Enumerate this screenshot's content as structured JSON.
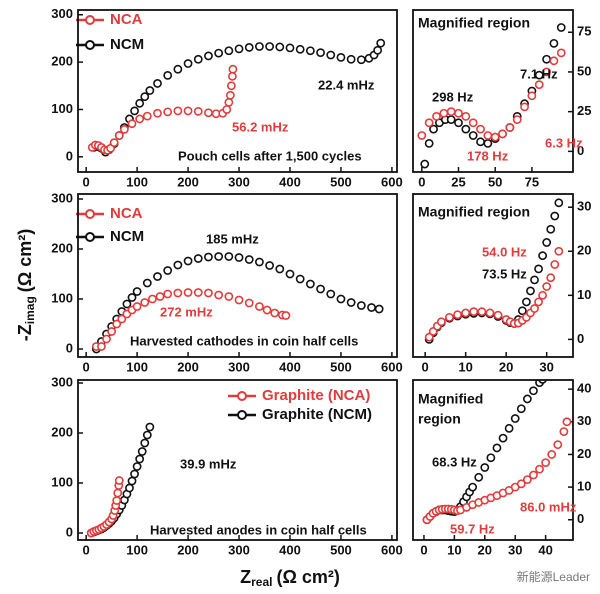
{
  "chart_data": [
    {
      "type": "scatter",
      "y_axis_side": "left",
      "xlim": [
        -16,
        610
      ],
      "ylim": [
        -32,
        310
      ],
      "xticks": [
        0,
        100,
        200,
        300,
        400,
        500,
        600
      ],
      "yticks": [
        0,
        100,
        200,
        300
      ],
      "series": [
        {
          "name": "NCM",
          "color": "#111111",
          "x": [
            15,
            22,
            30,
            38,
            45,
            55,
            65,
            75,
            85,
            95,
            105,
            115,
            125,
            140,
            160,
            180,
            200,
            220,
            240,
            260,
            280,
            300,
            320,
            340,
            360,
            380,
            400,
            420,
            440,
            460,
            480,
            500,
            520,
            540,
            555,
            565,
            572,
            578
          ],
          "values": [
            20,
            22,
            18,
            10,
            15,
            28,
            45,
            62,
            80,
            97,
            113,
            127,
            140,
            155,
            172,
            185,
            197,
            206,
            213,
            219,
            224,
            228,
            231,
            233,
            233,
            232,
            230,
            227,
            224,
            220,
            215,
            210,
            206,
            205,
            208,
            215,
            225,
            240
          ]
        },
        {
          "name": "NCA",
          "color": "#e03c3c",
          "x": [
            12,
            18,
            24,
            30,
            36,
            42,
            48,
            55,
            65,
            75,
            90,
            105,
            120,
            140,
            160,
            180,
            200,
            220,
            240,
            255,
            268,
            276,
            280,
            283,
            285,
            287,
            288
          ],
          "values": [
            20,
            25,
            24,
            20,
            15,
            14,
            18,
            30,
            45,
            58,
            70,
            80,
            86,
            92,
            95,
            97,
            97,
            96,
            93,
            91,
            92,
            100,
            115,
            130,
            150,
            170,
            185
          ]
        }
      ],
      "annotations": [
        {
          "text": "22.4 mHz",
          "color": "#111111"
        },
        {
          "text": "56.2 mHz",
          "color": "#e03c3c"
        },
        {
          "text": "Pouch cells after 1,500 cycles",
          "color": "#111111"
        }
      ]
    },
    {
      "type": "scatter",
      "y_axis_side": "right",
      "title": [
        "Magnified region"
      ],
      "xlim": [
        -6,
        103
      ],
      "ylim": [
        -13,
        89
      ],
      "xticks": [
        0,
        25,
        50,
        75
      ],
      "yticks": [
        0,
        25,
        50,
        75
      ],
      "series": [
        {
          "color": "#111111",
          "x": [
            2,
            5,
            8,
            12,
            16,
            20,
            25,
            30,
            35,
            40,
            45,
            50,
            55,
            60,
            65,
            70,
            75,
            80,
            85,
            90,
            95
          ],
          "values": [
            -8,
            5,
            14,
            18,
            20,
            20,
            18,
            14,
            10,
            6,
            5,
            8,
            11,
            15,
            22,
            30,
            38,
            48,
            58,
            68,
            78
          ]
        },
        {
          "color": "#e03c3c",
          "x": [
            0,
            5,
            10,
            15,
            20,
            25,
            30,
            35,
            40,
            45,
            50,
            55,
            60,
            65,
            70,
            75,
            80,
            85,
            90,
            95
          ],
          "values": [
            10,
            18,
            22,
            24,
            25,
            24,
            22,
            18,
            14,
            10,
            9,
            11,
            15,
            20,
            28,
            35,
            42,
            50,
            57,
            62
          ]
        }
      ],
      "annotations": [
        {
          "text": "298 Hz",
          "color": "#111111"
        },
        {
          "text": "7.1 Hz",
          "color": "#111111"
        },
        {
          "text": "178 Hz",
          "color": "#e03c3c"
        },
        {
          "text": "6.3 Hz",
          "color": "#e03c3c"
        }
      ]
    },
    {
      "type": "scatter",
      "y_axis_side": "left",
      "xlim": [
        -16,
        610
      ],
      "ylim": [
        -16,
        310
      ],
      "xticks": [
        0,
        100,
        200,
        300,
        400,
        500,
        600
      ],
      "yticks": [
        0,
        100,
        200,
        300
      ],
      "series": [
        {
          "name": "NCM",
          "color": "#111111",
          "x": [
            20,
            30,
            40,
            50,
            60,
            70,
            80,
            90,
            100,
            120,
            140,
            160,
            180,
            200,
            220,
            240,
            260,
            280,
            300,
            320,
            340,
            360,
            380,
            400,
            420,
            440,
            460,
            480,
            500,
            520,
            540,
            560,
            575
          ],
          "values": [
            0,
            15,
            30,
            45,
            60,
            75,
            90,
            103,
            115,
            132,
            145,
            157,
            168,
            176,
            181,
            184,
            185,
            185,
            183,
            179,
            174,
            167,
            160,
            150,
            140,
            130,
            120,
            110,
            100,
            93,
            87,
            83,
            80
          ]
        },
        {
          "name": "NCA",
          "color": "#e03c3c",
          "x": [
            20,
            30,
            40,
            50,
            60,
            70,
            80,
            90,
            100,
            115,
            130,
            145,
            160,
            180,
            200,
            220,
            240,
            260,
            280,
            300,
            320,
            340,
            355,
            370,
            385,
            392
          ],
          "values": [
            5,
            5,
            20,
            35,
            50,
            60,
            70,
            78,
            85,
            93,
            100,
            105,
            110,
            112,
            113,
            113,
            112,
            108,
            105,
            98,
            92,
            85,
            78,
            72,
            68,
            67
          ]
        }
      ],
      "annotations": [
        {
          "text": "185 mHz",
          "color": "#111111"
        },
        {
          "text": "272 mHz",
          "color": "#e03c3c"
        },
        {
          "text": "Harvested cathodes in coin half cells",
          "color": "#111111"
        }
      ]
    },
    {
      "type": "scatter",
      "y_axis_side": "right",
      "title": [
        "Magnified region"
      ],
      "xlim": [
        -3,
        36.5
      ],
      "ylim": [
        -4,
        33
      ],
      "xticks": [
        0,
        10,
        20,
        30
      ],
      "yticks": [
        0,
        10,
        20,
        30
      ],
      "series": [
        {
          "color": "#111111",
          "x": [
            1,
            2,
            3,
            4,
            6,
            8,
            10,
            12,
            14,
            16,
            18,
            20,
            21,
            22,
            23,
            24,
            25,
            26,
            27,
            28,
            29,
            30,
            31,
            32,
            33
          ],
          "values": [
            0,
            1.5,
            2.8,
            3.8,
            4.8,
            5.3,
            5.7,
            5.9,
            6,
            5.8,
            5.2,
            4.3,
            3.8,
            3.6,
            4.5,
            6.5,
            8.5,
            11,
            13.5,
            16,
            19,
            22,
            25,
            28,
            31
          ]
        },
        {
          "color": "#e03c3c",
          "x": [
            1,
            2,
            3,
            4,
            6,
            8,
            10,
            12,
            14,
            16,
            18,
            20,
            21,
            22,
            23,
            24,
            25,
            26,
            27,
            28,
            29,
            30,
            31,
            32,
            33
          ],
          "values": [
            0.5,
            1.8,
            3,
            4,
            5,
            5.6,
            6,
            6.3,
            6.3,
            6,
            5.5,
            4.5,
            4,
            3.6,
            3.7,
            4.3,
            5,
            6,
            7,
            8.5,
            10,
            12,
            14,
            17,
            20
          ]
        }
      ],
      "annotations": [
        {
          "text": "54.0 Hz",
          "color": "#e03c3c"
        },
        {
          "text": "73.5 Hz",
          "color": "#111111"
        }
      ]
    },
    {
      "type": "scatter",
      "y_axis_side": "left",
      "xlim": [
        -16,
        610
      ],
      "ylim": [
        -14,
        306
      ],
      "xticks": [
        0,
        100,
        200,
        300,
        400,
        500,
        600
      ],
      "yticks": [
        0,
        100,
        200,
        300
      ],
      "series": [
        {
          "name": "Graphite (NCM)",
          "color": "#111111",
          "x": [
            10,
            15,
            20,
            25,
            30,
            35,
            40,
            45,
            50,
            55,
            60,
            65,
            70,
            75,
            80,
            85,
            90,
            95,
            100,
            105,
            110,
            115,
            120,
            125
          ],
          "values": [
            0,
            2,
            4,
            6,
            8,
            11,
            15,
            19,
            24,
            30,
            38,
            46,
            55,
            66,
            78,
            90,
            104,
            118,
            133,
            148,
            163,
            180,
            196,
            212
          ]
        },
        {
          "name": "Graphite (NCA)",
          "color": "#e03c3c",
          "x": [
            10,
            15,
            20,
            25,
            30,
            35,
            40,
            45,
            50,
            53,
            56,
            58,
            60,
            62,
            64,
            65
          ],
          "values": [
            0,
            3,
            5,
            7,
            10,
            13,
            17,
            22,
            28,
            35,
            45,
            55,
            65,
            80,
            95,
            105
          ]
        }
      ],
      "annotations": [
        {
          "text": "39.9 mHz",
          "color": "#111111"
        },
        {
          "text": "Harvested anodes in coin half cells",
          "color": "#111111"
        }
      ]
    },
    {
      "type": "scatter",
      "y_axis_side": "right",
      "title": [
        "Magnified",
        "region"
      ],
      "xlim": [
        -3.6,
        49
      ],
      "ylim": [
        -6.2,
        42.8
      ],
      "xticks": [
        0,
        10,
        20,
        30,
        40
      ],
      "yticks": [
        0,
        10,
        20,
        30,
        40
      ],
      "series": [
        {
          "color": "#111111",
          "x": [
            1,
            2,
            3,
            4,
            5,
            6,
            7,
            8,
            9,
            10,
            11,
            12,
            13,
            14,
            15,
            16,
            18,
            20,
            22,
            24,
            26,
            28,
            30,
            32,
            34,
            36,
            38,
            39
          ],
          "values": [
            0,
            1,
            2,
            2.5,
            3,
            3,
            3,
            2.8,
            2.6,
            2.5,
            3,
            4,
            5.5,
            7,
            8.5,
            10,
            13,
            16,
            19,
            22,
            25,
            28,
            31,
            34,
            37,
            39.5,
            42,
            43
          ]
        },
        {
          "color": "#e03c3c",
          "x": [
            1,
            2,
            3,
            4,
            5,
            6,
            7,
            8,
            9,
            10,
            11,
            12,
            14,
            16,
            18,
            20,
            22,
            24,
            26,
            28,
            30,
            32,
            34,
            36,
            38,
            40,
            42,
            44,
            46,
            47
          ],
          "values": [
            0,
            1,
            2,
            2.6,
            3,
            3.2,
            3.3,
            3.3,
            3.2,
            3,
            2.8,
            3,
            3.8,
            4.6,
            5.3,
            6,
            6.7,
            7.4,
            8.2,
            9,
            10,
            11,
            12.3,
            13.7,
            15.5,
            17.5,
            20,
            23,
            27,
            30
          ]
        }
      ],
      "annotations": [
        {
          "text": "68.3 Hz",
          "color": "#111111"
        },
        {
          "text": "59.7 Hz",
          "color": "#e03c3c"
        },
        {
          "text": "86.0 mHz",
          "color": "#e03c3c"
        }
      ]
    }
  ],
  "x_label": {
    "symbol": "Z",
    "sub": "real",
    "unit": "(Ω cm²)"
  },
  "y_label": {
    "symbol": "-Z",
    "sub": "imag",
    "unit": "(Ω cm²)"
  },
  "watermark": "新能源Leader"
}
